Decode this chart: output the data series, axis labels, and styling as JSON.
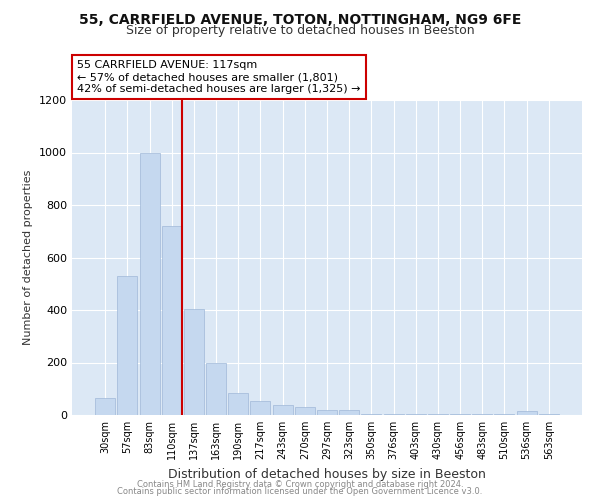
{
  "title1": "55, CARRFIELD AVENUE, TOTON, NOTTINGHAM, NG9 6FE",
  "title2": "Size of property relative to detached houses in Beeston",
  "xlabel": "Distribution of detached houses by size in Beeston",
  "ylabel": "Number of detached properties",
  "footer1": "Contains HM Land Registry data © Crown copyright and database right 2024.",
  "footer2": "Contains public sector information licensed under the Open Government Licence v3.0.",
  "categories": [
    "30sqm",
    "57sqm",
    "83sqm",
    "110sqm",
    "137sqm",
    "163sqm",
    "190sqm",
    "217sqm",
    "243sqm",
    "270sqm",
    "297sqm",
    "323sqm",
    "350sqm",
    "376sqm",
    "403sqm",
    "430sqm",
    "456sqm",
    "483sqm",
    "510sqm",
    "536sqm",
    "563sqm"
  ],
  "values": [
    65,
    530,
    1000,
    720,
    405,
    200,
    85,
    55,
    40,
    32,
    20,
    20,
    5,
    5,
    5,
    5,
    5,
    5,
    5,
    15,
    5
  ],
  "bar_color": "#c5d8ef",
  "bar_edge_color": "#a0b8d8",
  "vline_color": "#cc0000",
  "annotation_line1": "55 CARRFIELD AVENUE: 117sqm",
  "annotation_line2": "← 57% of detached houses are smaller (1,801)",
  "annotation_line3": "42% of semi-detached houses are larger (1,325) →",
  "annotation_box_color": "#ffffff",
  "annotation_box_edge": "#cc0000",
  "ylim": [
    0,
    1200
  ],
  "yticks": [
    0,
    200,
    400,
    600,
    800,
    1000,
    1200
  ],
  "fig_bg_color": "#ffffff",
  "plot_bg_color": "#dce8f5",
  "grid_color": "#ffffff",
  "title1_fontsize": 10,
  "title2_fontsize": 9,
  "xlabel_fontsize": 9,
  "ylabel_fontsize": 8,
  "tick_fontsize": 8,
  "xtick_fontsize": 7
}
